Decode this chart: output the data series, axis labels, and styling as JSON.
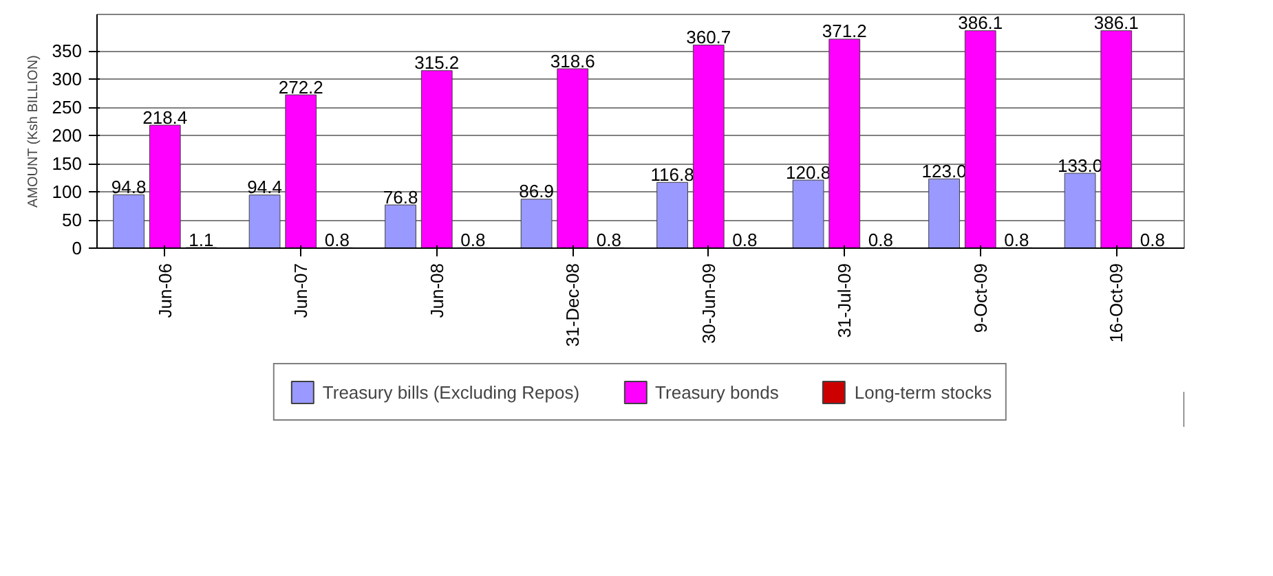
{
  "chart_data": {
    "type": "bar",
    "ylabel": "AMOUNT (Ksh BILLION)",
    "categories": [
      "Jun-06",
      "Jun-07",
      "Jun-08",
      "31-Dec-08",
      "30-Jun-09",
      "31-Jul-09",
      "9-Oct-09",
      "16-Oct-09"
    ],
    "series": [
      {
        "name": "Treasury bills (Excluding Repos)",
        "color": "#9999ff",
        "values": [
          94.8,
          94.4,
          76.8,
          86.9,
          116.8,
          120.8,
          123.0,
          133.0
        ],
        "value_labels": [
          "94.8",
          "94.4",
          "76.8",
          "86.9",
          "116.8",
          "120.8",
          "123.0",
          "133.0"
        ]
      },
      {
        "name": "Treasury bonds",
        "color": "#ff00ff",
        "values": [
          218.4,
          272.2,
          315.2,
          318.6,
          360.7,
          371.2,
          386.1,
          386.1
        ],
        "value_labels": [
          "218.4",
          "272.2",
          "315.2",
          "318.6",
          "360.7",
          "371.2",
          "386.1",
          "386.1"
        ]
      },
      {
        "name": "Long-term stocks",
        "color": "#cc0000",
        "values": [
          1.1,
          0.8,
          0.8,
          0.8,
          0.8,
          0.8,
          0.8,
          0.8
        ],
        "value_labels": [
          "1.1",
          "0.8",
          "0.8",
          "0.8",
          "0.8",
          "0.8",
          "0.8",
          "0.8"
        ]
      }
    ],
    "ylim": [
      0,
      415
    ],
    "yticks": [
      0,
      50,
      100,
      150,
      200,
      250,
      300,
      350
    ],
    "grid": "y",
    "legend": "bottom"
  }
}
